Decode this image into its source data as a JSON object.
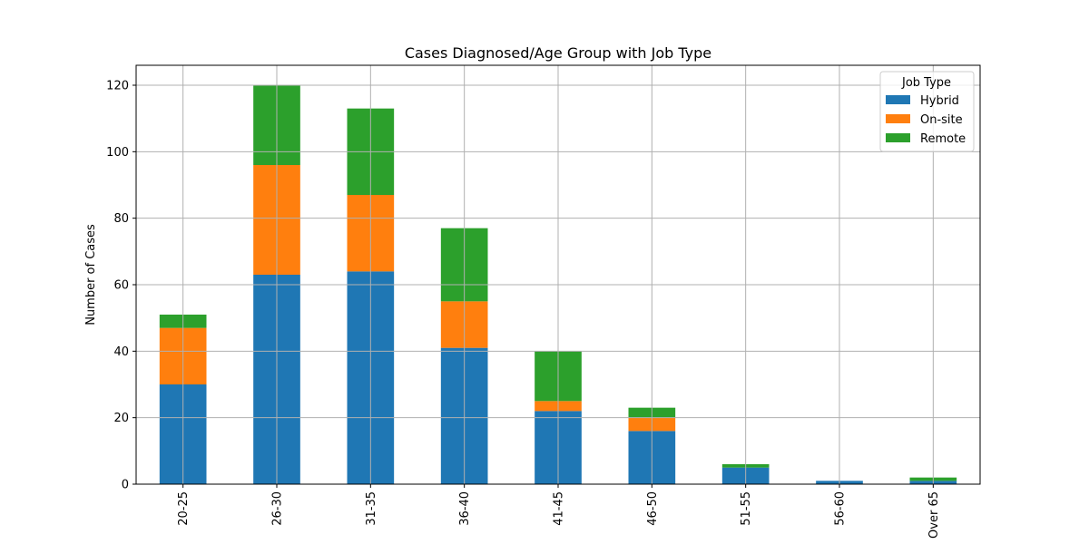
{
  "chart_data": {
    "type": "bar",
    "stacked": true,
    "title": "Cases Diagnosed/Age Group with Job Type",
    "xlabel": "",
    "ylabel": "Number of Cases",
    "categories": [
      "20-25",
      "26-30",
      "31-35",
      "36-40",
      "41-45",
      "46-50",
      "51-55",
      "56-60",
      "Over 65"
    ],
    "series": [
      {
        "name": "Hybrid",
        "color": "#1f77b4",
        "values": [
          30,
          63,
          64,
          41,
          22,
          16,
          5,
          1,
          1
        ]
      },
      {
        "name": "On-site",
        "color": "#ff7f0e",
        "values": [
          17,
          33,
          23,
          14,
          3,
          4,
          0,
          0,
          0
        ]
      },
      {
        "name": "Remote",
        "color": "#2ca02c",
        "values": [
          4,
          24,
          26,
          22,
          15,
          3,
          1,
          0,
          1
        ]
      }
    ],
    "ylim": [
      0,
      126
    ],
    "yticks": [
      0,
      20,
      40,
      60,
      80,
      100,
      120
    ],
    "grid": true,
    "legend": {
      "title": "Job Type",
      "placement": "top-right"
    }
  }
}
